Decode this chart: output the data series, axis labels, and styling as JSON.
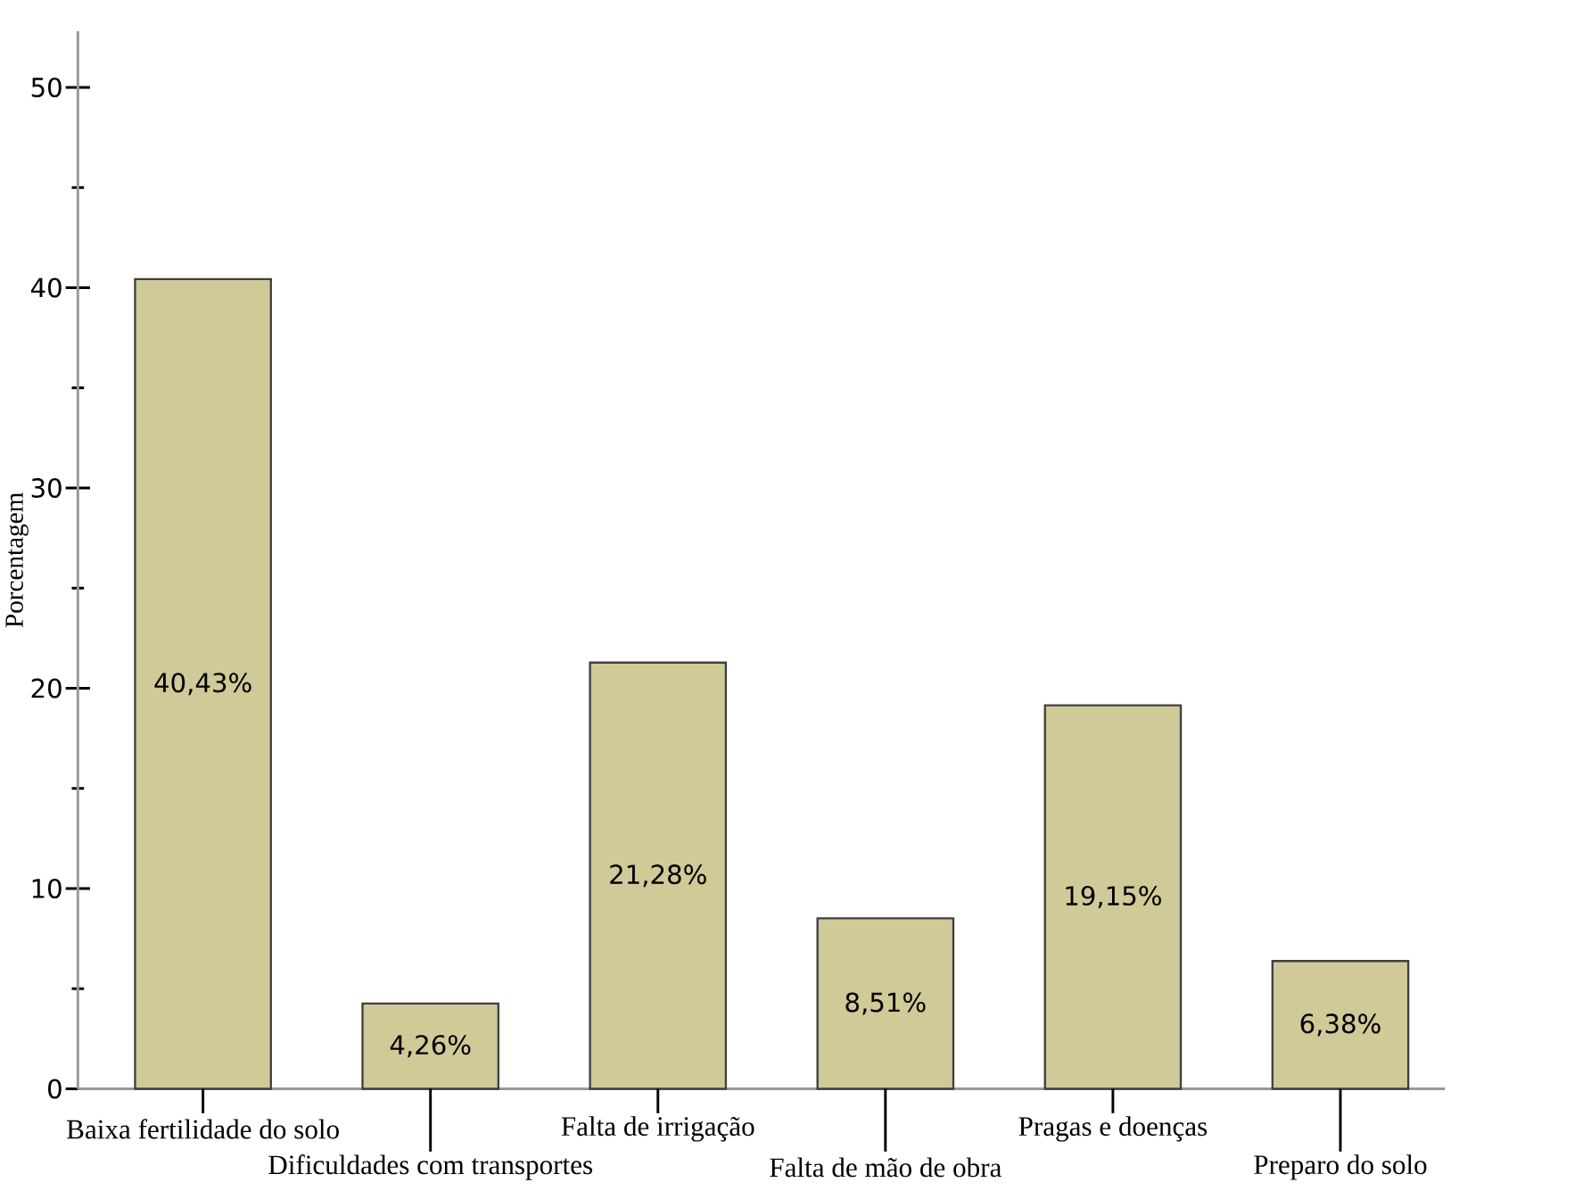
{
  "chart_data": {
    "type": "bar",
    "ylabel": "Porcentagem",
    "categories": [
      "Baixa fertilidade do solo",
      "Dificuldades com transportes",
      "Falta de irrigação",
      "Falta de mão de obra",
      "Pragas e doenças",
      "Preparo do solo"
    ],
    "values": [
      40.43,
      4.26,
      21.28,
      8.51,
      19.15,
      6.38
    ],
    "value_labels": [
      "40,43%",
      "4,26%",
      "21,28%",
      "8,51%",
      "19,15%",
      "6,38%"
    ],
    "color": "#cfca98",
    "ylim": [
      0,
      52.8
    ],
    "yticks": [
      0,
      {
        "value": 5,
        "label": null
      },
      10,
      {
        "value": 15,
        "label": null
      },
      20,
      {
        "value": 25,
        "label": null
      },
      30,
      {
        "value": 35,
        "label": null
      },
      40,
      {
        "value": 45,
        "label": null
      },
      50
    ],
    "grid": false
  }
}
